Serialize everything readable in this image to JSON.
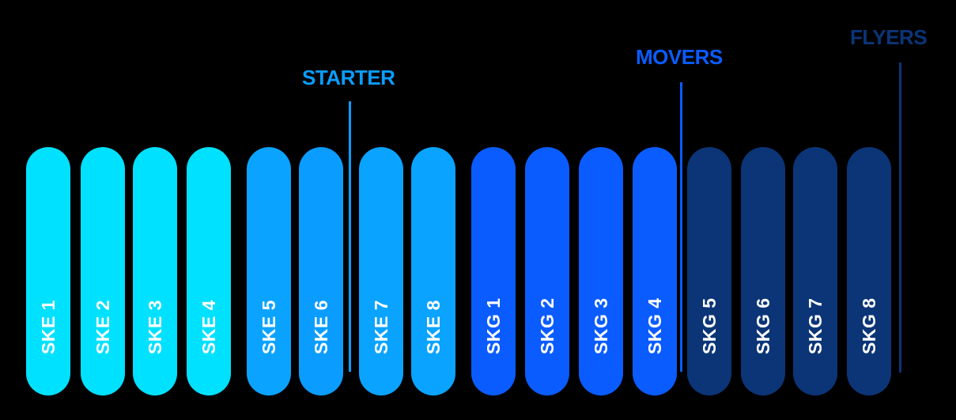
{
  "bars": [
    {
      "label": "SKE 1",
      "color": "#00E1FF"
    },
    {
      "label": "SKE 2",
      "color": "#00E1FF"
    },
    {
      "label": "SKE 3",
      "color": "#00E1FF"
    },
    {
      "label": "SKE 4",
      "color": "#00E1FF"
    },
    {
      "label": "SKE 5",
      "color": "#0AA3FF"
    },
    {
      "label": "SKE 6",
      "color": "#0A9DFF"
    },
    {
      "label": "SKE 7",
      "color": "#0AA3FF"
    },
    {
      "label": "SKE 8",
      "color": "#0AA3FF"
    },
    {
      "label": "SKG 1",
      "color": "#0A5CFF"
    },
    {
      "label": "SKG 2",
      "color": "#0A5CFF"
    },
    {
      "label": "SKG 3",
      "color": "#0A5CFF"
    },
    {
      "label": "SKG 4",
      "color": "#0A5CFF"
    },
    {
      "label": "SKG 5",
      "color": "#0B3577"
    },
    {
      "label": "SKG 6",
      "color": "#0B3577"
    },
    {
      "label": "SKG 7",
      "color": "#0B3577"
    },
    {
      "label": "SKG 8",
      "color": "#0B3577"
    }
  ],
  "levels": [
    {
      "title": "STARTER",
      "color": "#0A9DFF"
    },
    {
      "title": "MOVERS",
      "color": "#0A5CFF"
    },
    {
      "title": "FLYERS",
      "color": "#0B3577"
    }
  ]
}
